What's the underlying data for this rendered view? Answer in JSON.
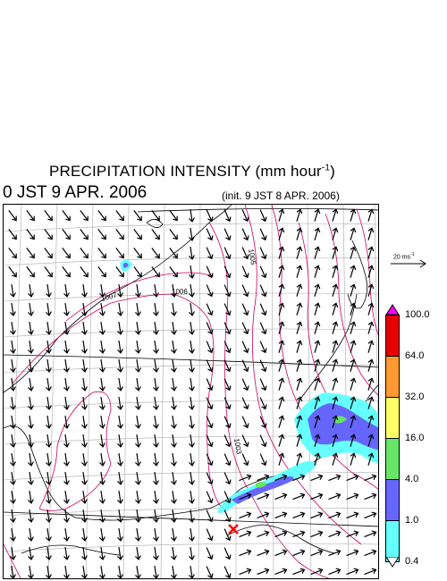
{
  "title": {
    "main": "PRECIPITATION INTENSITY (mm hour",
    "unit_exp": "-1",
    "close": ")"
  },
  "datetime": "0 JST 9 APR. 2006",
  "init": "(init. 9 JST 8 APR. 2006)",
  "wind_reference": {
    "label": "20 ms",
    "exp": "-1"
  },
  "legend": {
    "colors": [
      "#ff00ff",
      "#e60000",
      "#ff9933",
      "#ffff66",
      "#66e666",
      "#6666ff",
      "#66ffff",
      "#ffffff"
    ],
    "ticks": [
      "100.0",
      "64.0",
      "32.0",
      "16.0",
      "4.0",
      "1.0",
      "0.4"
    ]
  },
  "isobars": [
    "1005",
    "1006",
    "1007",
    "1003"
  ],
  "marker_color": "#ff0000",
  "contour_color": "#cc0066"
}
